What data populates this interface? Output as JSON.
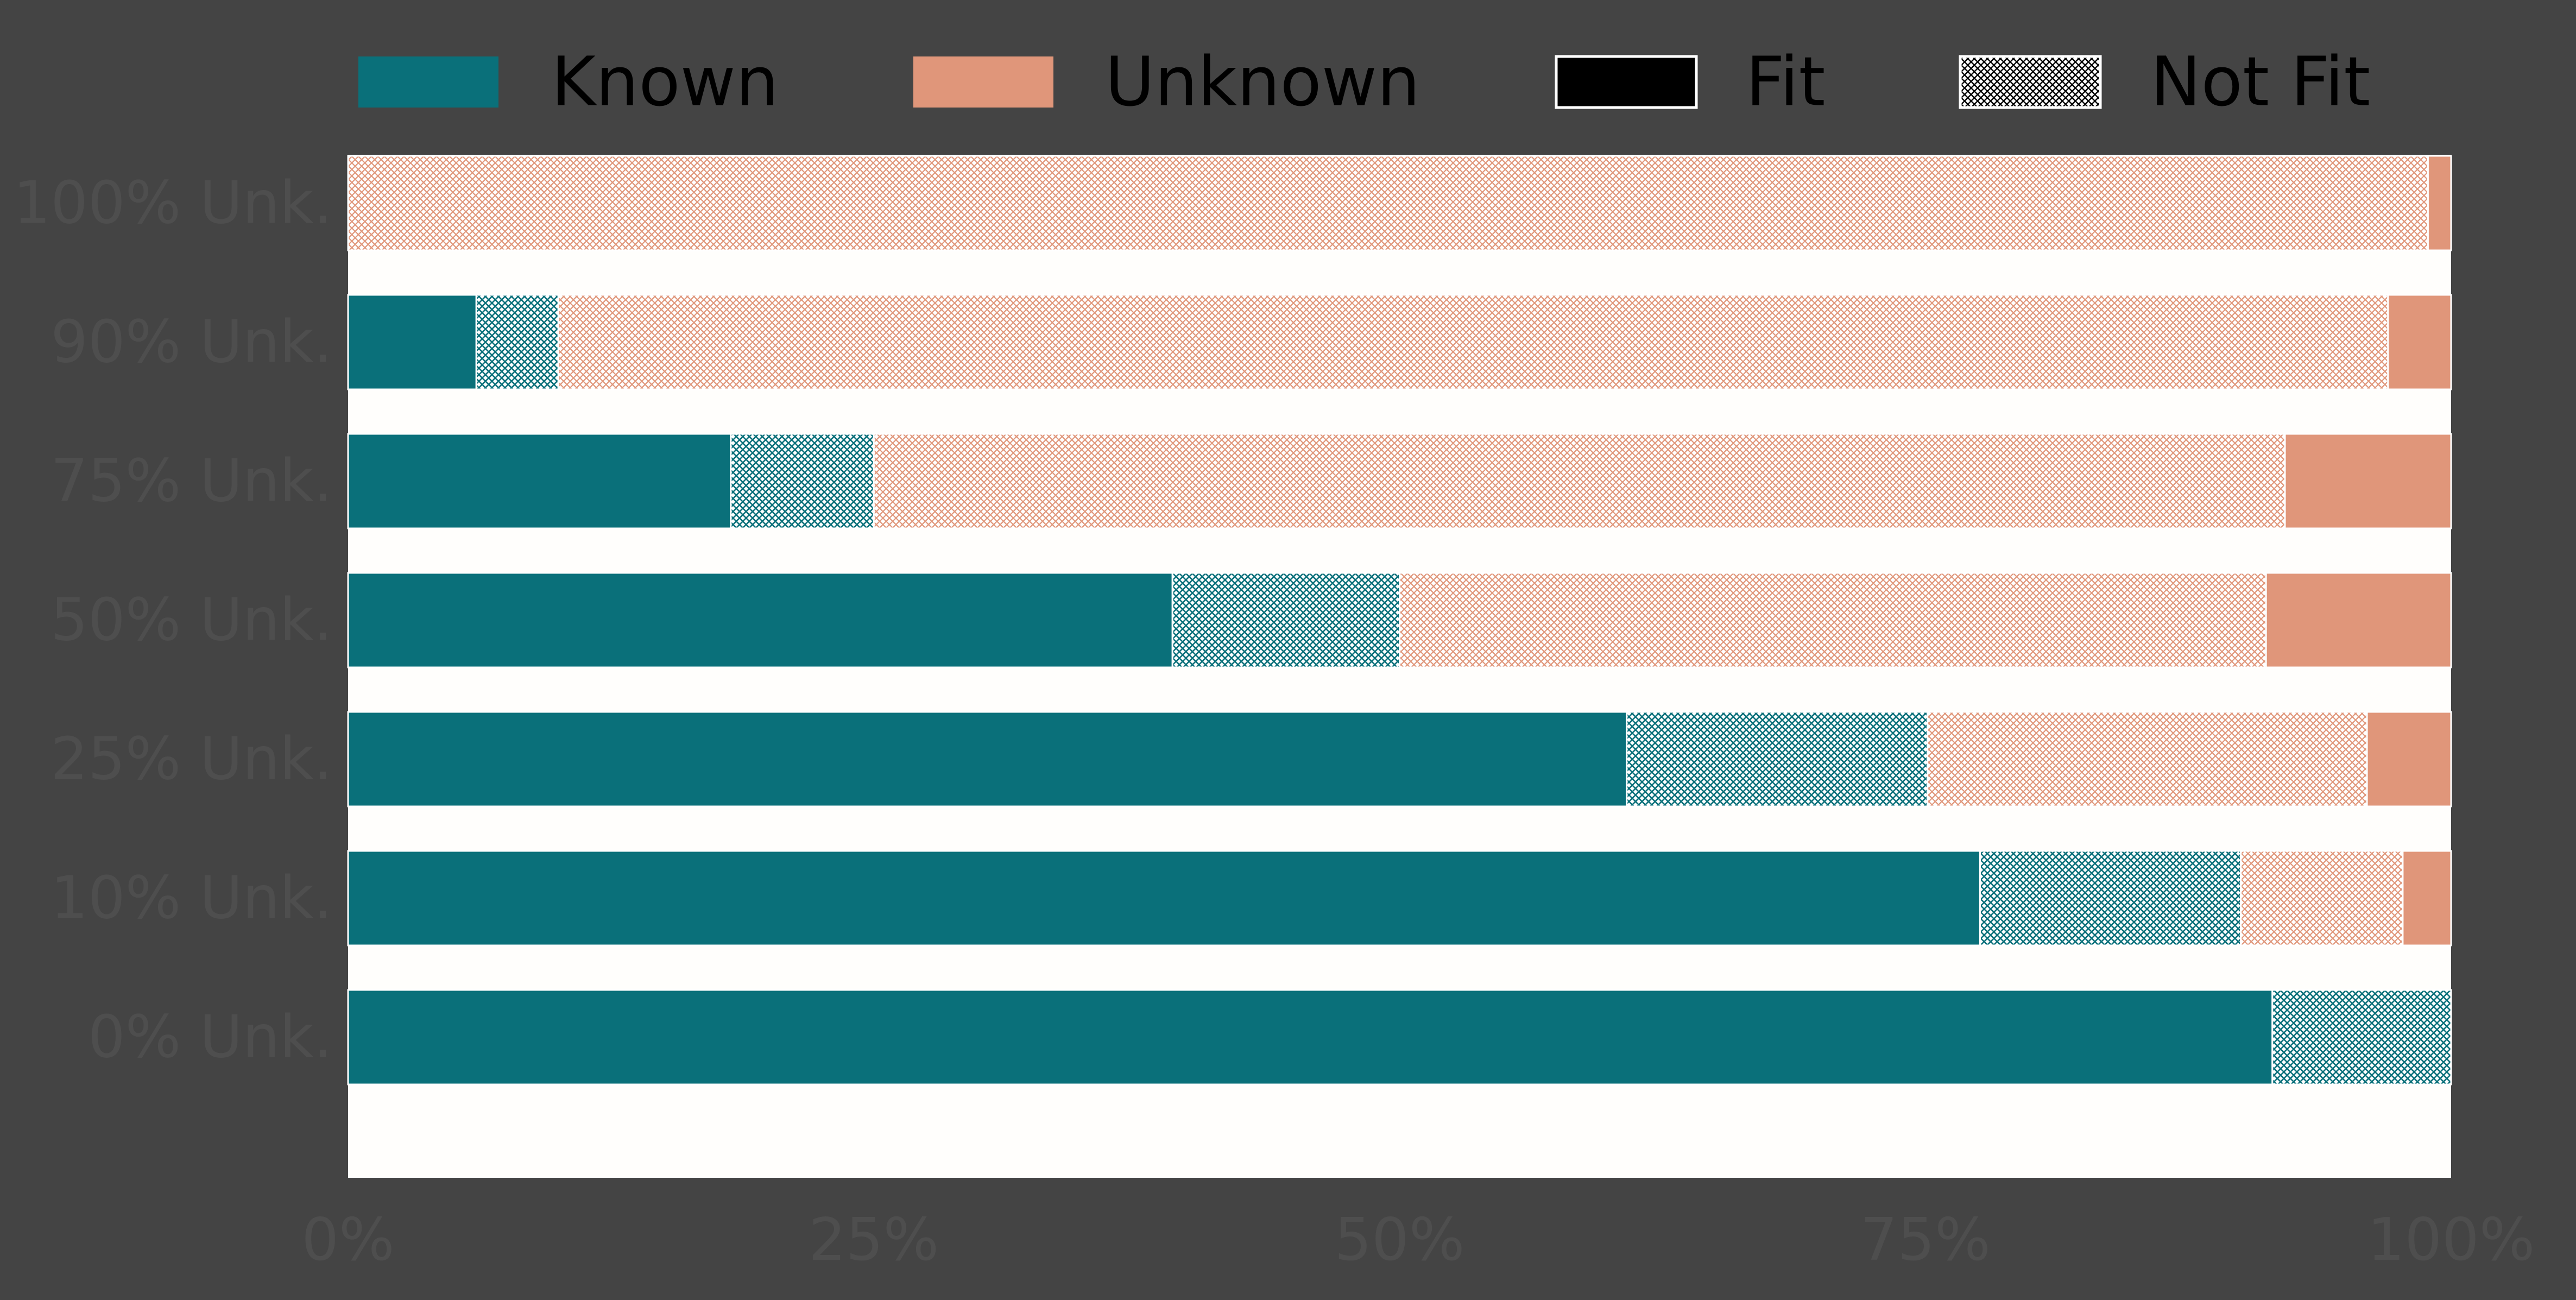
{
  "chart_data": {
    "type": "bar",
    "orientation": "horizontal",
    "stacked": true,
    "title": "",
    "xlabel": "",
    "ylabel": "",
    "xlim": [
      0,
      100
    ],
    "x_ticks": [
      "0%",
      "25%",
      "50%",
      "75%",
      "100%"
    ],
    "x_tick_values": [
      0,
      25,
      50,
      75,
      100
    ],
    "grid": false,
    "legend_position": "top",
    "categories": [
      "100% Unk.",
      "90% Unk.",
      "75% Unk.",
      "50% Unk.",
      "25% Unk.",
      "10% Unk.",
      "0% Unk."
    ],
    "series": [
      {
        "name": "Known",
        "fit": "Fit",
        "color": "#0a707a",
        "pattern": "solid",
        "values": [
          0,
          6.1,
          18.2,
          39.2,
          60.8,
          77.6,
          91.5
        ]
      },
      {
        "name": "Known",
        "fit": "Not Fit",
        "color": "#0a707a",
        "pattern": "cross-hatch",
        "values": [
          0,
          3.9,
          6.8,
          10.8,
          14.3,
          12.4,
          8.5
        ]
      },
      {
        "name": "Unknown",
        "fit": "Not Fit",
        "color": "#e0967a",
        "pattern": "cross-hatch",
        "values": [
          98.9,
          87.0,
          67.1,
          41.2,
          20.9,
          7.7,
          0
        ]
      },
      {
        "name": "Unknown",
        "fit": "Fit",
        "color": "#e0967a",
        "pattern": "solid",
        "values": [
          1.1,
          3.0,
          7.9,
          8.8,
          4.0,
          2.3,
          0
        ]
      }
    ],
    "legend": [
      {
        "label": "Known",
        "type": "color",
        "color": "#0a707a"
      },
      {
        "label": "Unknown",
        "type": "color",
        "color": "#e0967a"
      },
      {
        "label": "Fit",
        "type": "pattern",
        "pattern": "solid"
      },
      {
        "label": "Not Fit",
        "type": "pattern",
        "pattern": "cross-hatch"
      }
    ],
    "colors": {
      "background": "#444444",
      "plot_background": "#fffefc",
      "tick_text": "#4e4e4e",
      "known": "#0a707a",
      "unknown": "#e0967a"
    }
  }
}
